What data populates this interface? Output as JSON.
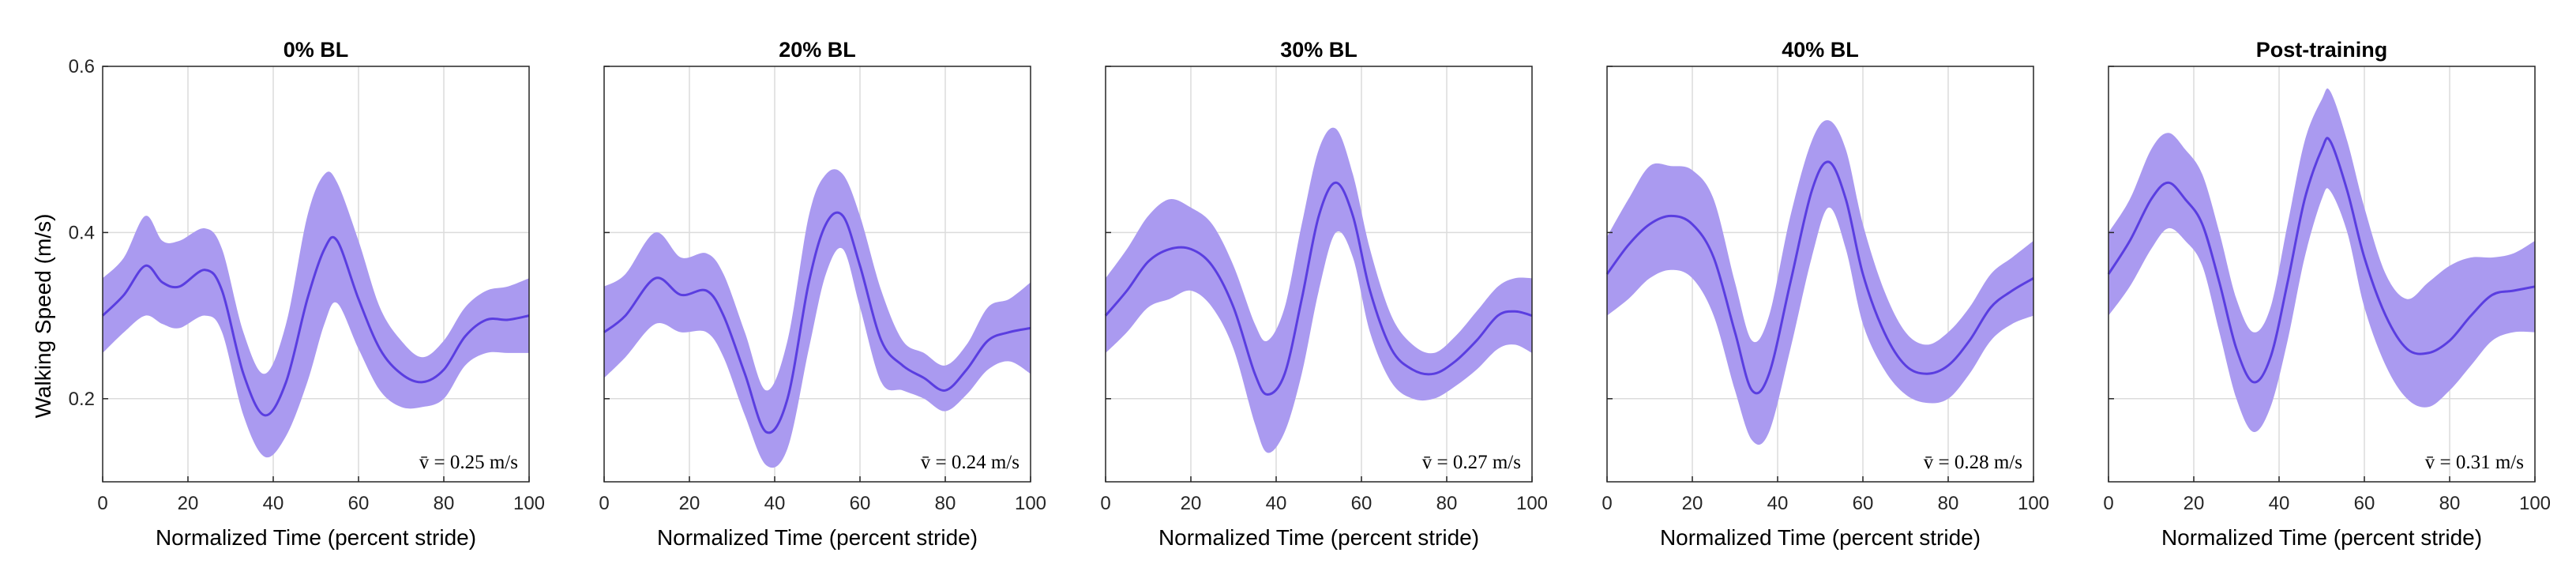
{
  "chart_data": {
    "type": "line",
    "ylabel": "Walking Speed (m/s)",
    "xlabel": "Normalized Time (percent stride)",
    "xlim": [
      0,
      100
    ],
    "ylim": [
      0.1,
      0.6
    ],
    "xticks": [
      0,
      20,
      40,
      60,
      80,
      100
    ],
    "yticks": [
      0.2,
      0.4,
      0.6
    ],
    "grid": true,
    "colors": {
      "band": "#aa9af0",
      "mean": "#5a3ee0"
    },
    "panels": [
      {
        "title": "0% BL",
        "annotation": "v̄ = 0.25 m/s",
        "x": [
          0,
          5,
          10,
          14,
          18,
          24,
          28,
          33,
          38,
          43,
          48,
          52,
          55,
          60,
          65,
          70,
          75,
          80,
          85,
          90,
          95,
          100
        ],
        "mean": [
          0.3,
          0.325,
          0.36,
          0.34,
          0.335,
          0.355,
          0.33,
          0.23,
          0.18,
          0.22,
          0.32,
          0.38,
          0.39,
          0.32,
          0.26,
          0.23,
          0.22,
          0.235,
          0.275,
          0.295,
          0.295,
          0.3
        ],
        "upper": [
          0.345,
          0.37,
          0.42,
          0.39,
          0.39,
          0.405,
          0.38,
          0.28,
          0.23,
          0.29,
          0.42,
          0.47,
          0.46,
          0.39,
          0.31,
          0.27,
          0.25,
          0.27,
          0.31,
          0.33,
          0.335,
          0.345
        ],
        "lower": [
          0.255,
          0.28,
          0.3,
          0.29,
          0.285,
          0.3,
          0.28,
          0.18,
          0.13,
          0.155,
          0.22,
          0.29,
          0.315,
          0.26,
          0.21,
          0.19,
          0.19,
          0.2,
          0.24,
          0.255,
          0.255,
          0.255
        ]
      },
      {
        "title": "20% BL",
        "annotation": "v̄ = 0.24 m/s",
        "x": [
          0,
          5,
          12,
          18,
          24,
          28,
          33,
          38,
          43,
          48,
          52,
          56,
          60,
          65,
          70,
          75,
          80,
          85,
          90,
          95,
          100
        ],
        "mean": [
          0.28,
          0.3,
          0.345,
          0.325,
          0.33,
          0.3,
          0.23,
          0.16,
          0.2,
          0.34,
          0.41,
          0.42,
          0.36,
          0.27,
          0.24,
          0.225,
          0.21,
          0.235,
          0.27,
          0.28,
          0.285
        ],
        "upper": [
          0.335,
          0.35,
          0.4,
          0.37,
          0.375,
          0.35,
          0.28,
          0.21,
          0.27,
          0.42,
          0.47,
          0.47,
          0.42,
          0.33,
          0.27,
          0.255,
          0.24,
          0.265,
          0.31,
          0.32,
          0.34
        ],
        "lower": [
          0.225,
          0.25,
          0.29,
          0.28,
          0.28,
          0.25,
          0.18,
          0.12,
          0.14,
          0.26,
          0.35,
          0.38,
          0.31,
          0.22,
          0.21,
          0.2,
          0.185,
          0.205,
          0.235,
          0.245,
          0.23
        ]
      },
      {
        "title": "30% BL",
        "annotation": "v̄ = 0.27 m/s",
        "x": [
          0,
          5,
          10,
          15,
          20,
          25,
          30,
          35,
          38,
          42,
          46,
          50,
          54,
          58,
          62,
          67,
          72,
          77,
          82,
          87,
          92,
          96,
          100
        ],
        "mean": [
          0.3,
          0.33,
          0.365,
          0.38,
          0.38,
          0.36,
          0.31,
          0.23,
          0.205,
          0.23,
          0.32,
          0.42,
          0.46,
          0.42,
          0.33,
          0.26,
          0.235,
          0.23,
          0.245,
          0.27,
          0.3,
          0.305,
          0.3
        ],
        "upper": [
          0.345,
          0.38,
          0.42,
          0.44,
          0.43,
          0.41,
          0.36,
          0.29,
          0.27,
          0.31,
          0.41,
          0.5,
          0.525,
          0.47,
          0.38,
          0.3,
          0.265,
          0.255,
          0.275,
          0.305,
          0.335,
          0.345,
          0.345
        ],
        "lower": [
          0.255,
          0.28,
          0.31,
          0.32,
          0.33,
          0.31,
          0.26,
          0.17,
          0.135,
          0.16,
          0.23,
          0.33,
          0.4,
          0.37,
          0.28,
          0.22,
          0.2,
          0.2,
          0.215,
          0.235,
          0.26,
          0.265,
          0.255
        ]
      },
      {
        "title": "40% BL",
        "annotation": "v̄ = 0.28 m/s",
        "x": [
          0,
          5,
          10,
          15,
          20,
          25,
          30,
          34,
          38,
          43,
          48,
          52,
          56,
          60,
          65,
          70,
          75,
          80,
          85,
          90,
          95,
          100
        ],
        "mean": [
          0.35,
          0.385,
          0.41,
          0.42,
          0.41,
          0.37,
          0.28,
          0.21,
          0.23,
          0.34,
          0.45,
          0.485,
          0.44,
          0.35,
          0.28,
          0.24,
          0.23,
          0.24,
          0.27,
          0.31,
          0.33,
          0.345
        ],
        "upper": [
          0.395,
          0.44,
          0.48,
          0.48,
          0.475,
          0.44,
          0.34,
          0.27,
          0.3,
          0.42,
          0.51,
          0.535,
          0.5,
          0.41,
          0.33,
          0.28,
          0.265,
          0.28,
          0.31,
          0.35,
          0.37,
          0.39
        ],
        "lower": [
          0.3,
          0.32,
          0.345,
          0.355,
          0.345,
          0.3,
          0.21,
          0.15,
          0.16,
          0.26,
          0.37,
          0.43,
          0.38,
          0.29,
          0.235,
          0.205,
          0.195,
          0.2,
          0.23,
          0.27,
          0.29,
          0.3
        ]
      },
      {
        "title": "Post-training",
        "annotation": "v̄ = 0.31 m/s",
        "x": [
          0,
          5,
          10,
          14,
          18,
          22,
          26,
          30,
          34,
          38,
          42,
          46,
          50,
          52,
          56,
          60,
          65,
          70,
          75,
          80,
          85,
          90,
          95,
          100
        ],
        "mean": [
          0.35,
          0.39,
          0.44,
          0.46,
          0.44,
          0.41,
          0.34,
          0.26,
          0.22,
          0.25,
          0.34,
          0.44,
          0.5,
          0.51,
          0.45,
          0.37,
          0.3,
          0.26,
          0.255,
          0.27,
          0.3,
          0.325,
          0.33,
          0.335
        ],
        "upper": [
          0.4,
          0.44,
          0.5,
          0.52,
          0.5,
          0.47,
          0.4,
          0.32,
          0.28,
          0.31,
          0.41,
          0.51,
          0.56,
          0.57,
          0.51,
          0.43,
          0.35,
          0.32,
          0.34,
          0.36,
          0.37,
          0.37,
          0.375,
          0.39
        ],
        "lower": [
          0.3,
          0.335,
          0.38,
          0.405,
          0.39,
          0.36,
          0.28,
          0.2,
          0.16,
          0.19,
          0.27,
          0.37,
          0.44,
          0.45,
          0.4,
          0.31,
          0.24,
          0.2,
          0.19,
          0.21,
          0.24,
          0.27,
          0.28,
          0.28
        ]
      }
    ]
  }
}
